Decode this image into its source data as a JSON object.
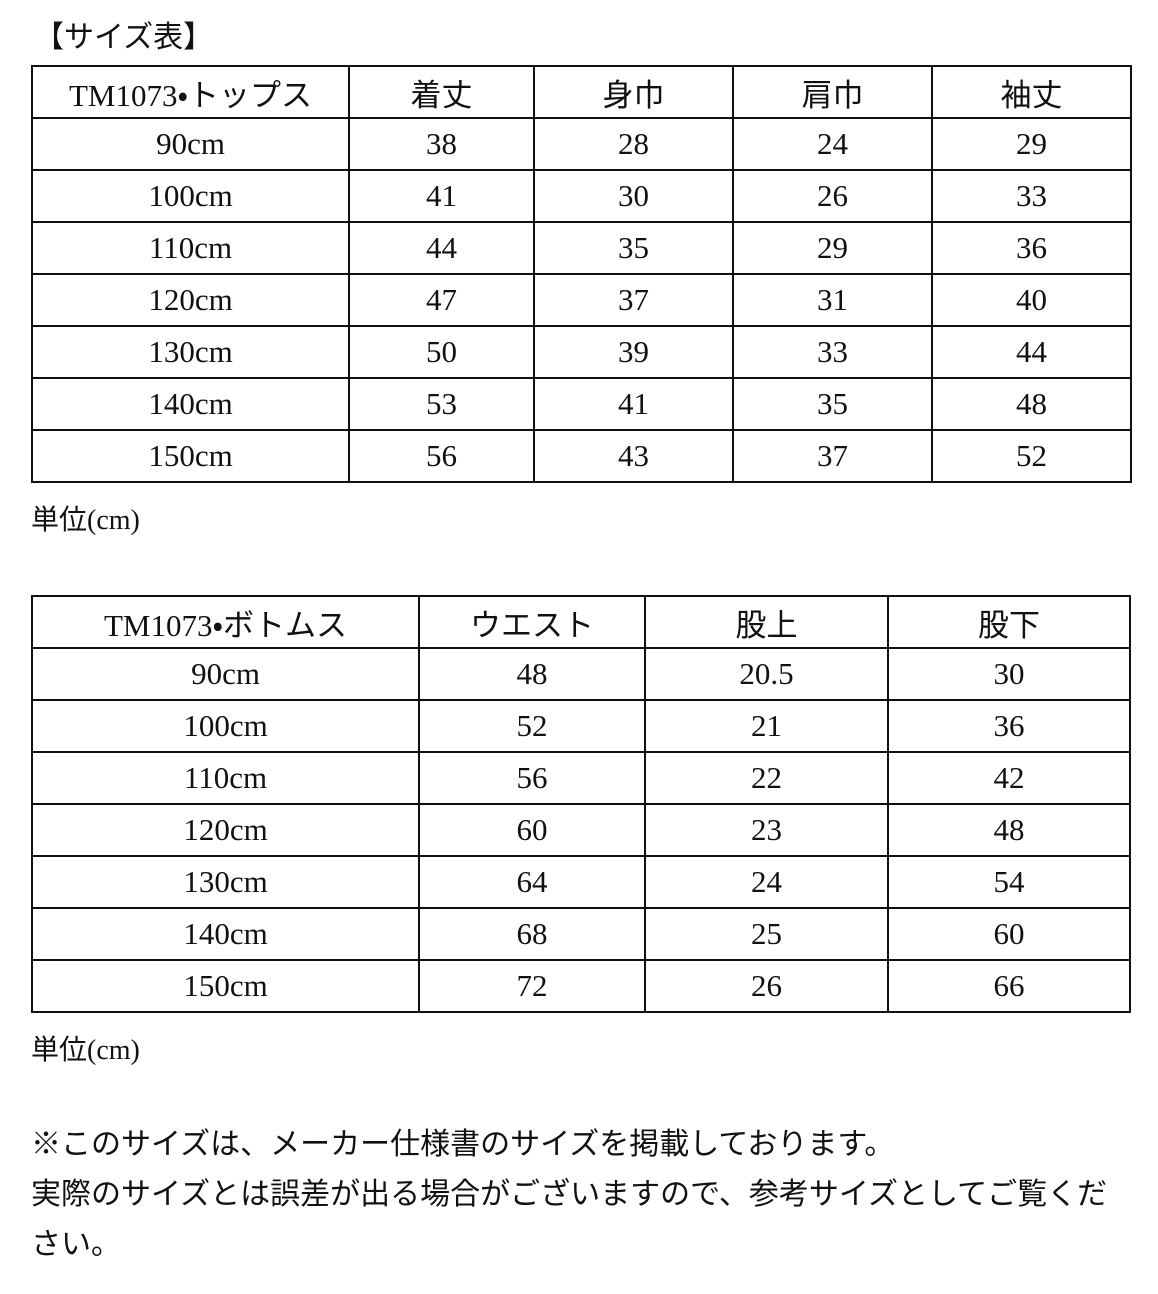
{
  "header": {
    "title": "【サイズ表】"
  },
  "tables": [
    {
      "columns": [
        "TM1073・トップス",
        "着丈",
        "身巾",
        "肩巾",
        "袖丈"
      ],
      "rows": [
        [
          "90cm",
          38,
          28,
          24,
          29
        ],
        [
          "100cm",
          41,
          30,
          26,
          33
        ],
        [
          "110cm",
          44,
          35,
          29,
          36
        ],
        [
          "120cm",
          47,
          37,
          31,
          40
        ],
        [
          "130cm",
          50,
          39,
          33,
          44
        ],
        [
          "140cm",
          53,
          41,
          35,
          48
        ],
        [
          "150cm",
          56,
          43,
          37,
          52
        ]
      ],
      "unit": "単位(cm)"
    },
    {
      "columns": [
        "TM1073・ボトムス",
        "ウエスト",
        "股上",
        "股下"
      ],
      "rows": [
        [
          "90cm",
          48,
          20.5,
          30
        ],
        [
          "100cm",
          52,
          21,
          36
        ],
        [
          "110cm",
          56,
          22,
          42
        ],
        [
          "120cm",
          60,
          23,
          48
        ],
        [
          "130cm",
          64,
          24,
          54
        ],
        [
          "140cm",
          68,
          25,
          60
        ],
        [
          "150cm",
          72,
          26,
          66
        ]
      ],
      "unit": "単位(cm)"
    }
  ],
  "notes": [
    "※このサイズは、メーカー仕様書のサイズを掲載しております。",
    "実際のサイズとは誤差が出る場合がございますので、参考サイズとしてご覧ください。"
  ]
}
